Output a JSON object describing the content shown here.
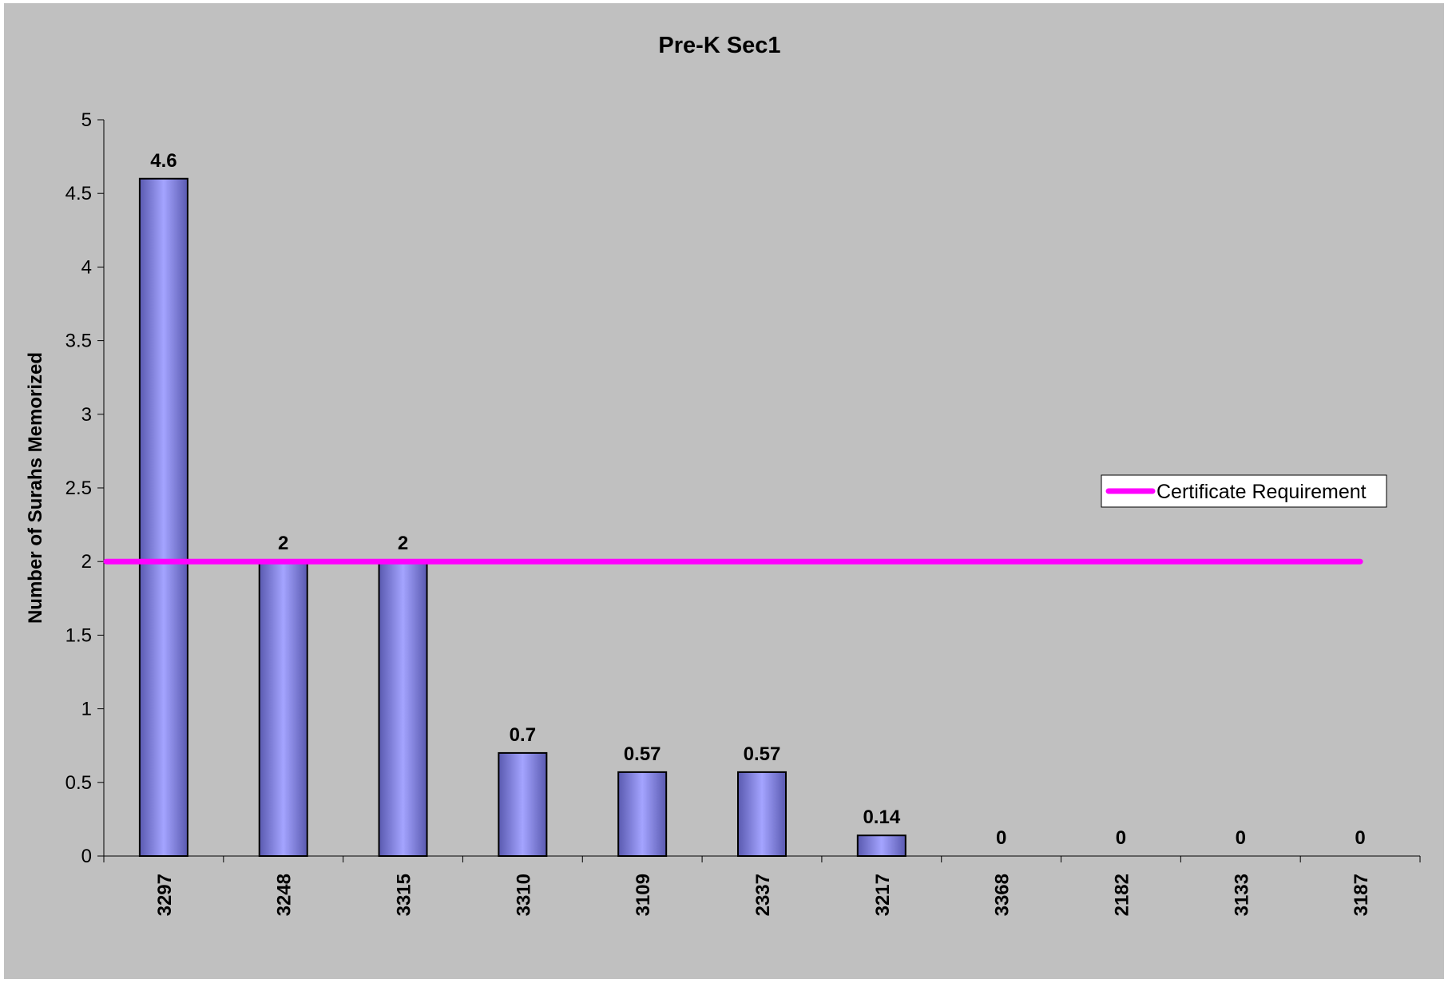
{
  "chart_data": {
    "type": "bar",
    "title": "Pre-K Sec1",
    "xlabel": "",
    "ylabel": "Number of Surahs Memorized",
    "ylim": [
      0,
      5
    ],
    "yticks": [
      "0",
      "0.5",
      "1",
      "1.5",
      "2",
      "2.5",
      "3",
      "3.5",
      "4",
      "4.5",
      "5"
    ],
    "categories": [
      "3297",
      "3248",
      "3315",
      "3310",
      "3109",
      "2337",
      "3217",
      "3368",
      "2182",
      "3133",
      "3187"
    ],
    "values": [
      4.6,
      2,
      2,
      0.7,
      0.57,
      0.57,
      0.14,
      0,
      0,
      0,
      0
    ],
    "data_labels": [
      "4.6",
      "2",
      "2",
      "0.7",
      "0.57",
      "0.57",
      "0.14",
      "0",
      "0",
      "0",
      "0"
    ],
    "reference_line": {
      "name": "Certificate Requirement",
      "value": 2,
      "color": "#ff00ff"
    },
    "legend": {
      "position": "right",
      "entries": [
        "Certificate Requirement"
      ]
    },
    "colors": {
      "bar": "#9999ff",
      "background": "#c0c0c0",
      "reference": "#ff00ff"
    },
    "grid": false
  }
}
